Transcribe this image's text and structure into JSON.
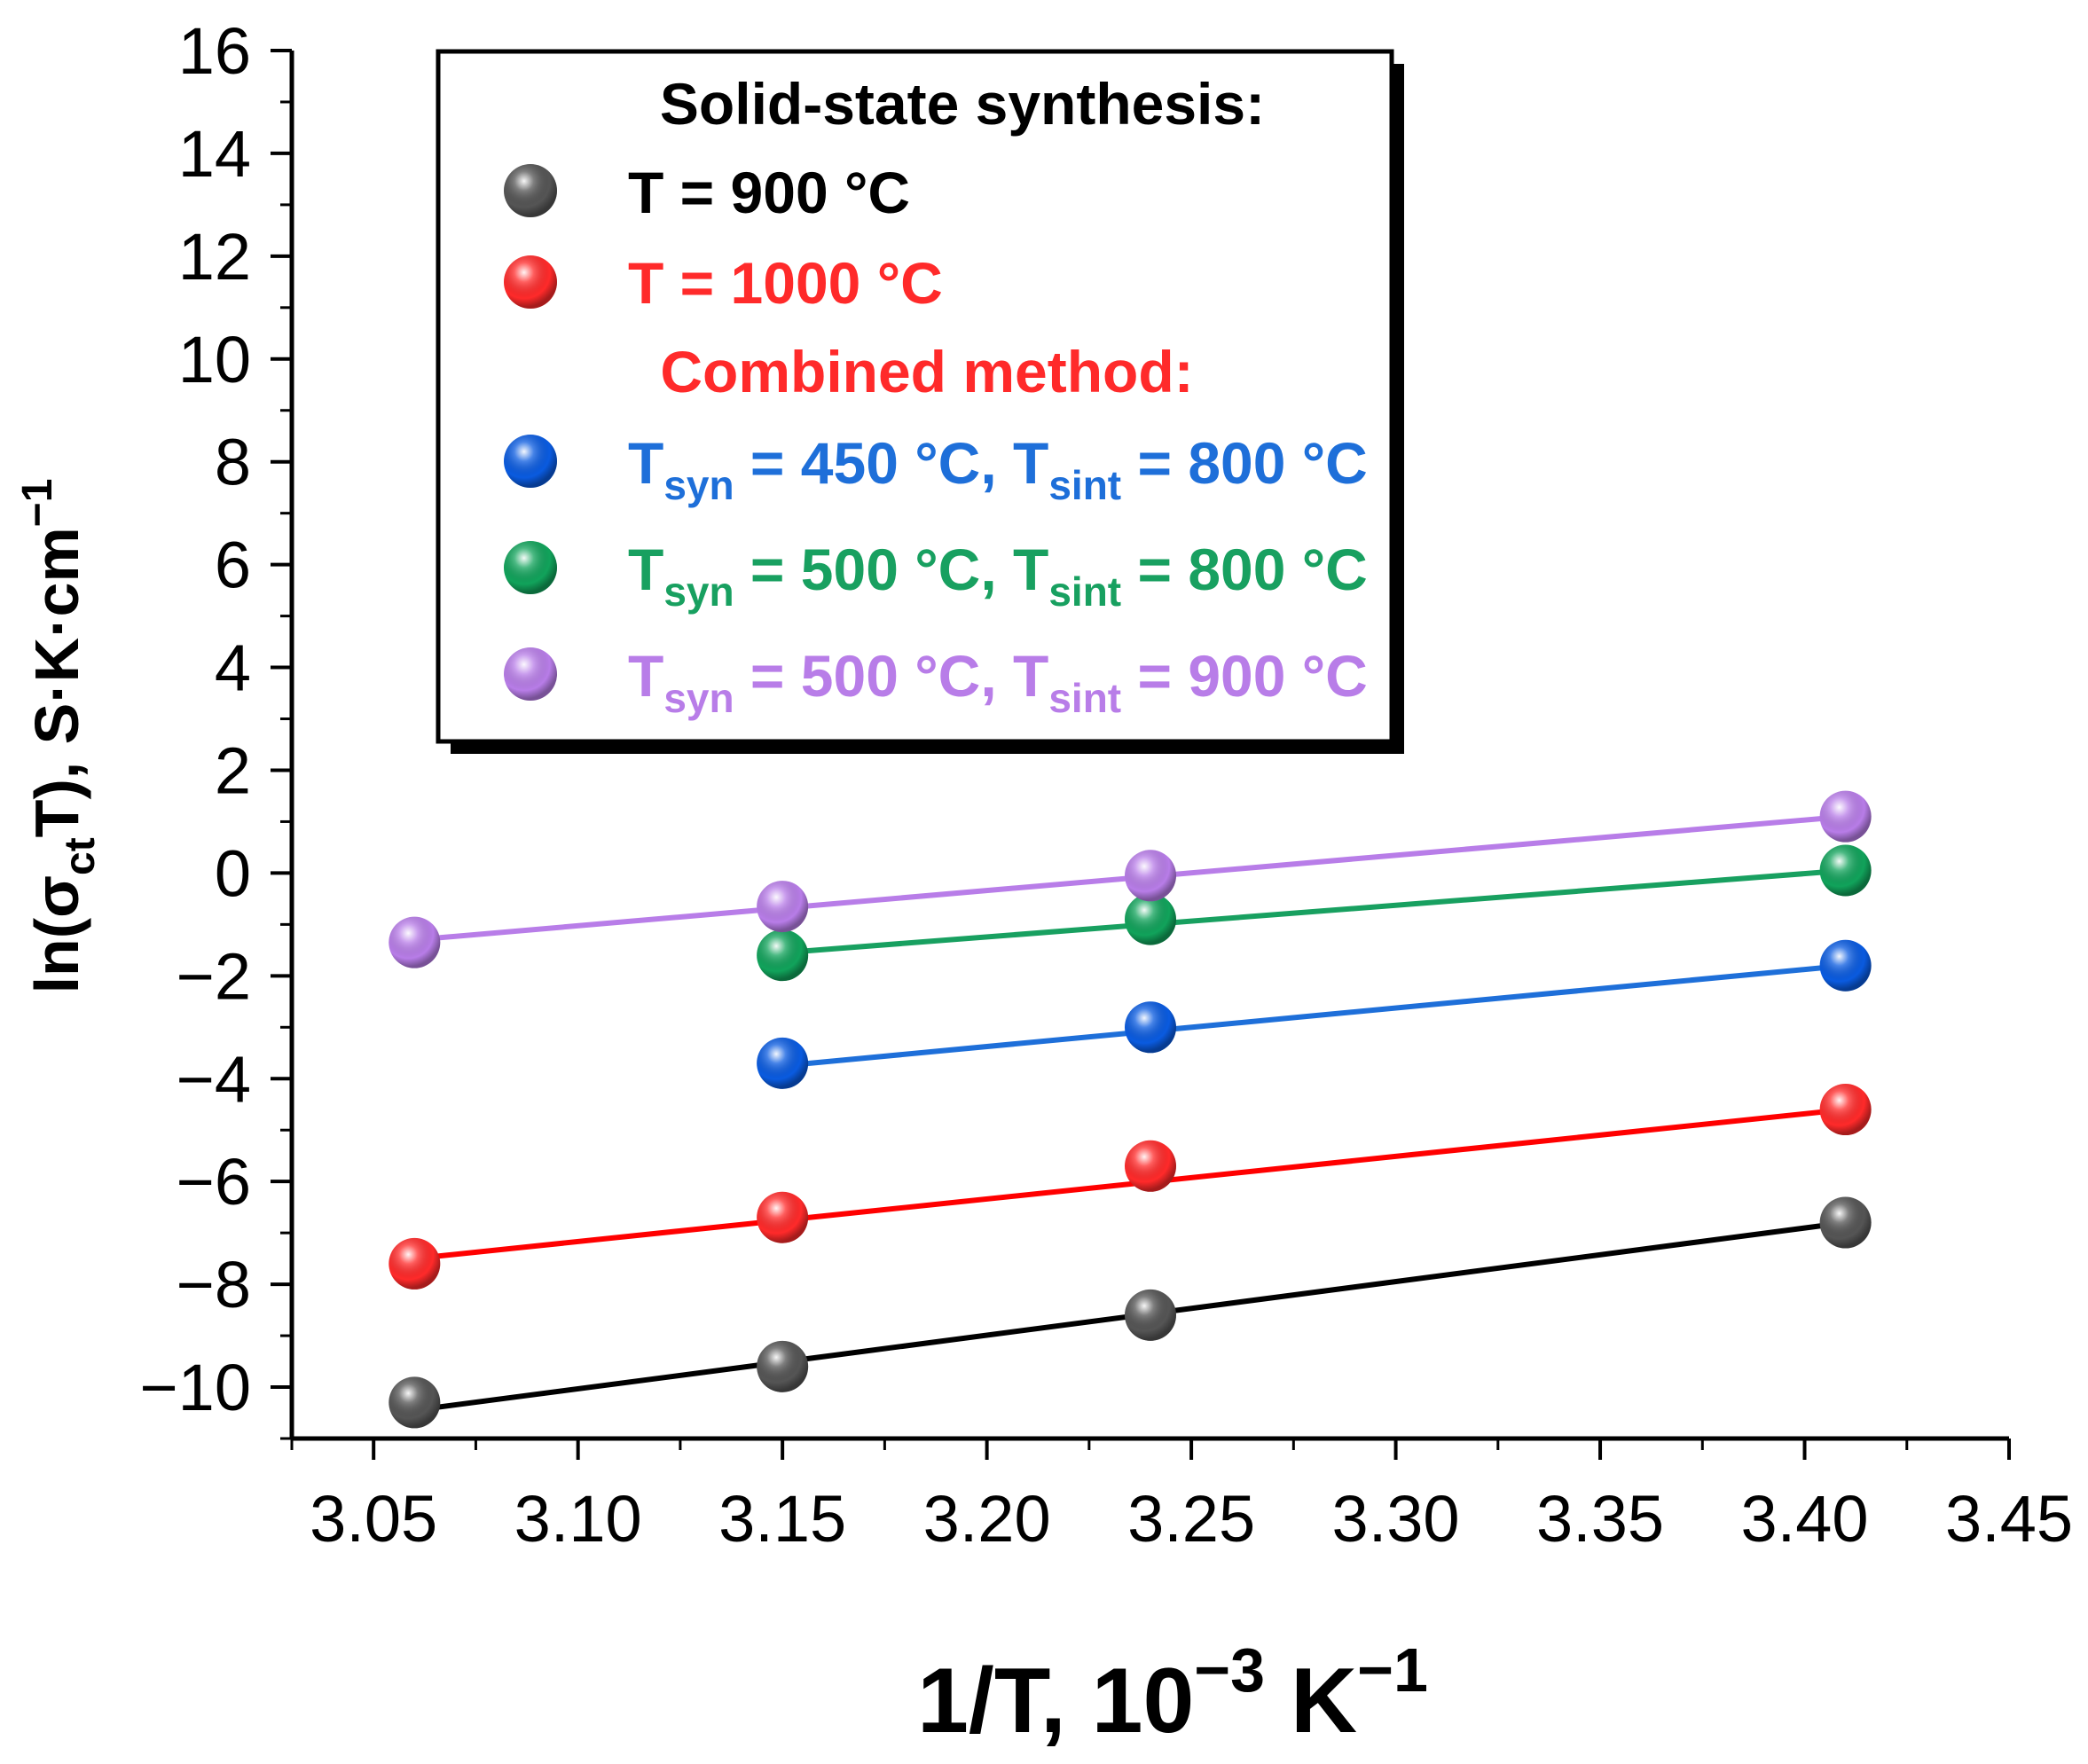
{
  "chart_data": {
    "type": "scatter",
    "xlabel": {
      "main": "1/T, 10",
      "exp1": "−3",
      "mid": " K",
      "exp2": "−1"
    },
    "ylabel": {
      "pre": "ln(σ",
      "sub": "ct",
      "post": "T), S·K·cm",
      "sup": "−1"
    },
    "xlim": [
      3.03,
      3.45
    ],
    "ylim": [
      -11,
      16
    ],
    "x_ticks": [
      3.05,
      3.1,
      3.15,
      3.2,
      3.25,
      3.3,
      3.35,
      3.4,
      3.45
    ],
    "x_tick_labels": [
      "3.05",
      "3.10",
      "3.15",
      "3.20",
      "3.25",
      "3.30",
      "3.35",
      "3.40",
      "3.45"
    ],
    "y_ticks": [
      -10,
      -8,
      -6,
      -4,
      -2,
      0,
      2,
      4,
      6,
      8,
      10,
      12,
      14,
      16
    ],
    "y_tick_labels": [
      "−10",
      "−8",
      "−6",
      "−4",
      "−2",
      "0",
      "2",
      "4",
      "6",
      "8",
      "10",
      "12",
      "14",
      "16"
    ],
    "legend_position": "top-center",
    "legend_headers": {
      "solid_state": "Solid-state synthesis:",
      "combined": "Combined method:"
    },
    "series": [
      {
        "name": "T = 900 °C",
        "legend": {
          "main": "T = 900 °C"
        },
        "color": "#555555",
        "line_color": "#000000",
        "x": [
          3.06,
          3.15,
          3.24,
          3.41
        ],
        "y": [
          -10.3,
          -9.6,
          -8.6,
          -6.8
        ],
        "fit": [
          [
            3.06,
            -10.45
          ],
          [
            3.41,
            -6.8
          ]
        ]
      },
      {
        "name": "T = 1000 °C",
        "legend": {
          "main": "T = 1000 °C"
        },
        "color": "#ff2a2a",
        "line_color": "#ff0000",
        "x": [
          3.06,
          3.15,
          3.24,
          3.41
        ],
        "y": [
          -7.6,
          -6.7,
          -5.7,
          -4.6
        ],
        "fit": [
          [
            3.06,
            -7.5
          ],
          [
            3.41,
            -4.6
          ]
        ]
      },
      {
        "name": "Tsyn = 450 °C, Tsint = 800 °C",
        "legend": {
          "t1": "T",
          "s1": "syn",
          "m1": " = 450 °C, ",
          "t2": "T",
          "s2": "sint",
          "m2": " = 800 °C"
        },
        "color": "#0a5be0",
        "line_color": "#1e6fd9",
        "x": [
          3.15,
          3.24,
          3.41
        ],
        "y": [
          -3.7,
          -3.0,
          -1.8
        ],
        "fit": [
          [
            3.15,
            -3.75
          ],
          [
            3.41,
            -1.8
          ]
        ]
      },
      {
        "name": "Tsyn = 500 °C, Tsint = 800 °C",
        "legend": {
          "t1": "T",
          "s1": "syn",
          "m1": " = 500 °C, ",
          "t2": "T",
          "s2": "sint",
          "m2": " = 800 °C"
        },
        "color": "#11a35b",
        "line_color": "#18a060",
        "x": [
          3.15,
          3.24,
          3.41
        ],
        "y": [
          -1.6,
          -0.9,
          0.05
        ],
        "fit": [
          [
            3.15,
            -1.55
          ],
          [
            3.41,
            0.05
          ]
        ]
      },
      {
        "name": "Tsyn = 500 °C, Tsint = 900 °C",
        "legend": {
          "t1": "T",
          "s1": "syn",
          "m1": " = 500 °C, ",
          "t2": "T",
          "s2": "sint",
          "m2": " = 900 °C"
        },
        "color": "#b87de8",
        "line_color": "#b87de8",
        "x": [
          3.06,
          3.15,
          3.24,
          3.41
        ],
        "y": [
          -1.35,
          -0.65,
          -0.05,
          1.1
        ],
        "fit": [
          [
            3.06,
            -1.3
          ],
          [
            3.41,
            1.1
          ]
        ]
      }
    ]
  }
}
